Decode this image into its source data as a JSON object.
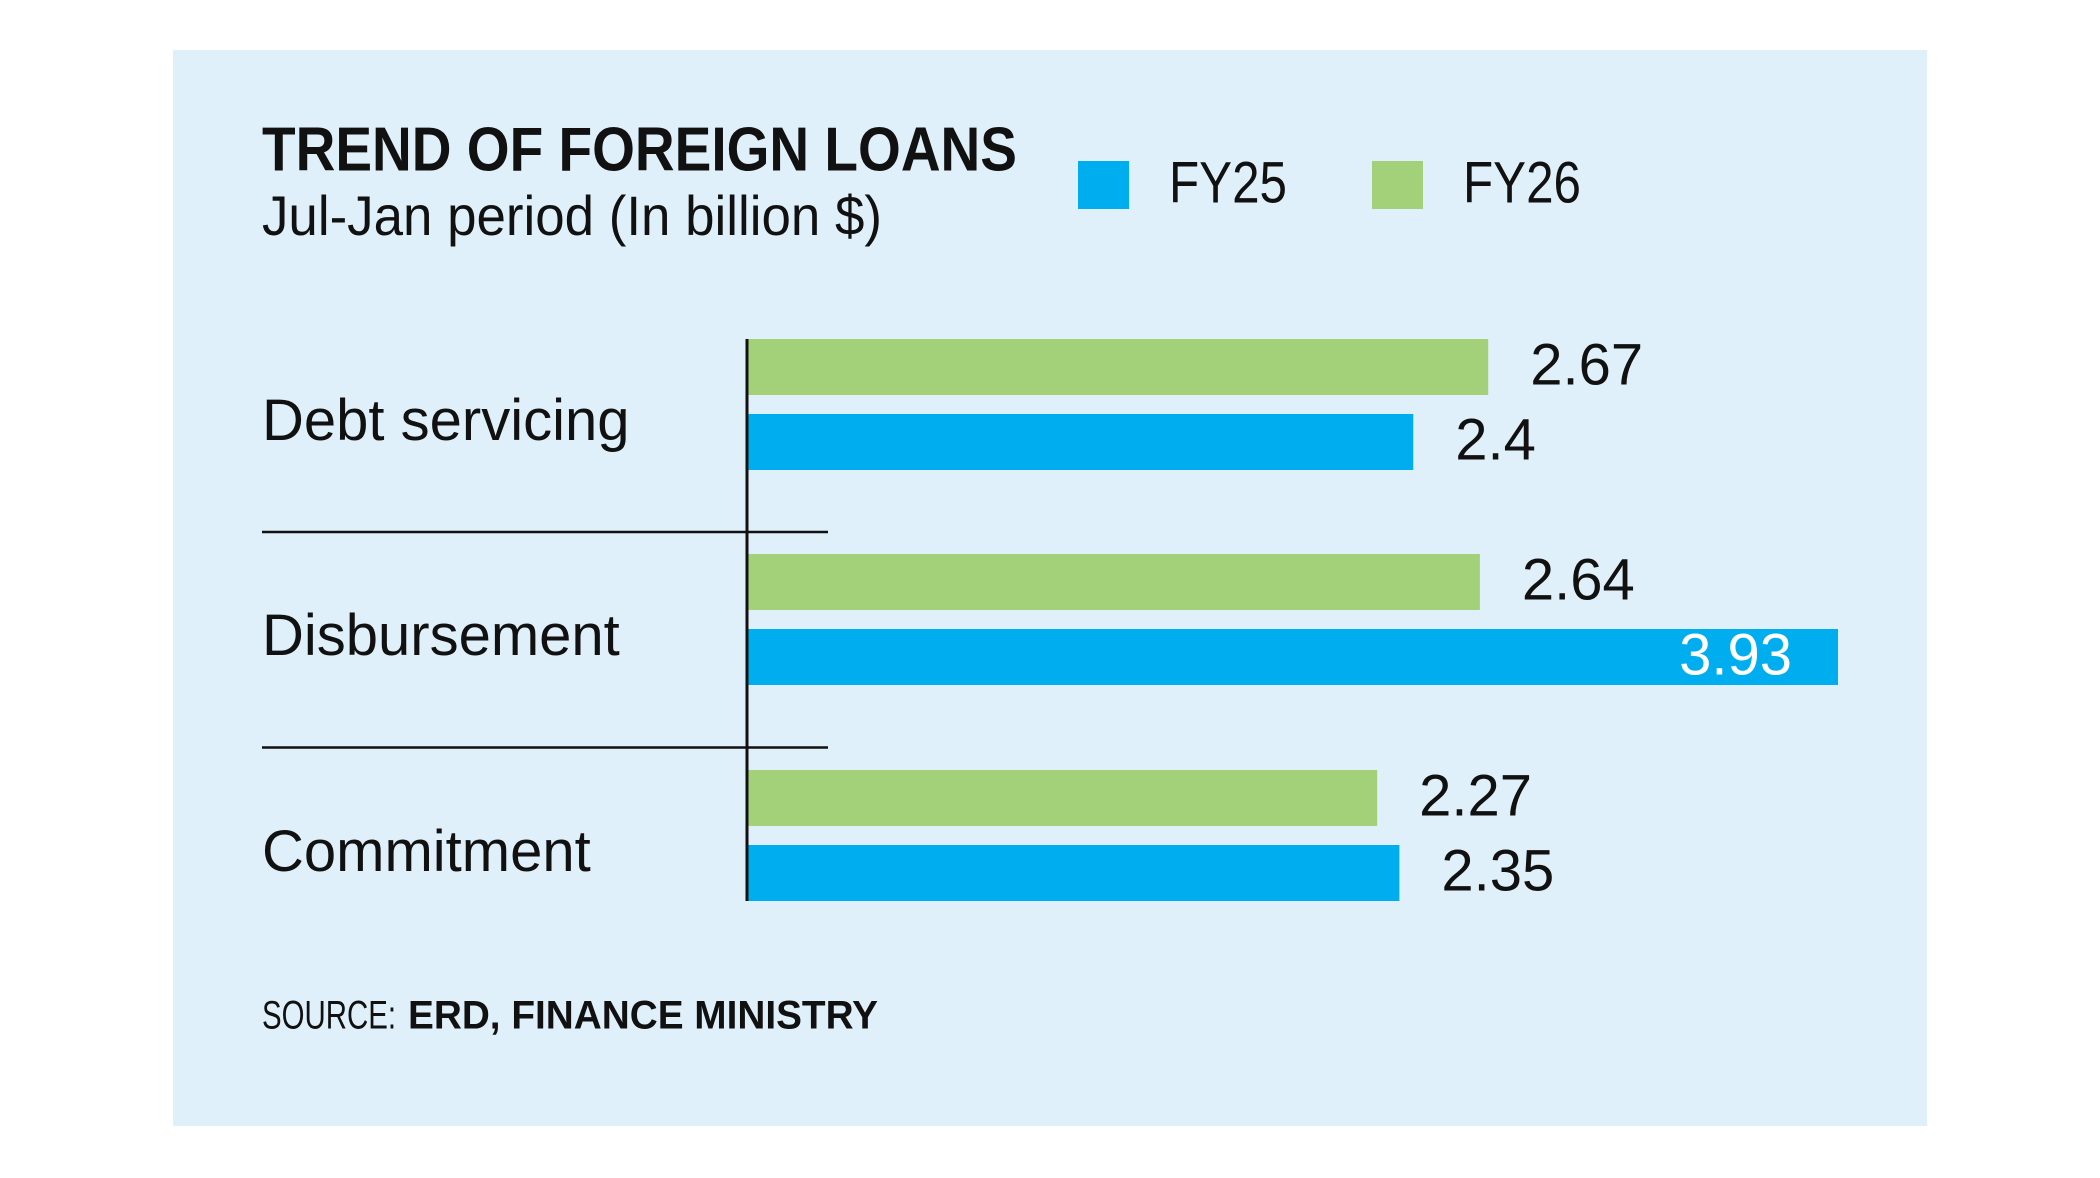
{
  "chart_data": {
    "type": "bar",
    "orientation": "horizontal",
    "title": "TREND OF FOREIGN LOANS",
    "subtitle": "Jul-Jan period (In billion $)",
    "categories": [
      "Debt servicing",
      "Disbursement",
      "Commitment"
    ],
    "series": [
      {
        "name": "FY26",
        "color": "#a3d17a",
        "values": [
          2.67,
          2.64,
          2.27
        ]
      },
      {
        "name": "FY25",
        "color": "#00aeef",
        "values": [
          2.4,
          3.93,
          2.35
        ]
      }
    ],
    "legend_order": [
      "FY25",
      "FY26"
    ],
    "source_label": "SOURCE:",
    "source": "ERD, FINANCE MINISTRY"
  }
}
